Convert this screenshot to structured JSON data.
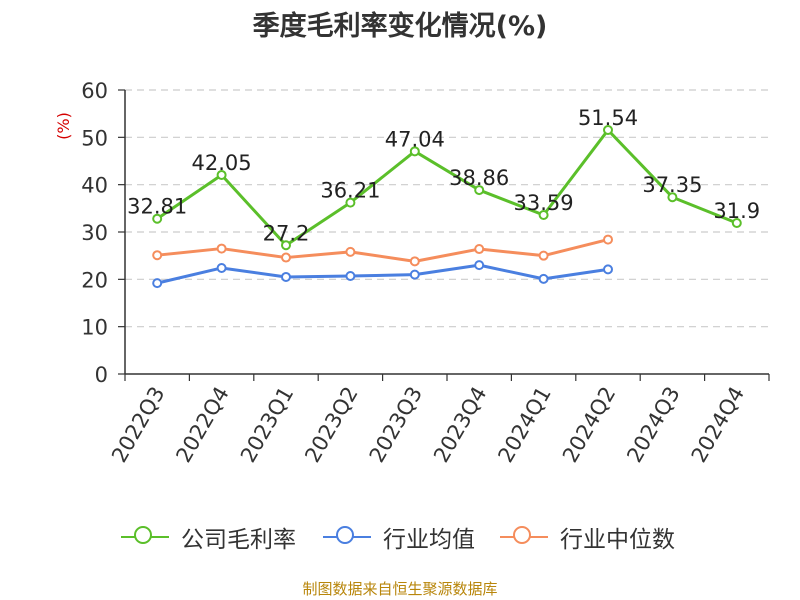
{
  "title": "季度毛利率变化情况(%)",
  "source": "制图数据来自恒生聚源数据库",
  "chart_data": {
    "type": "line",
    "title": "季度毛利率变化情况(%)",
    "ylabel": "(%)",
    "xlabel": "",
    "ylim": [
      0,
      60
    ],
    "yticks": [
      0,
      10,
      20,
      30,
      40,
      50,
      60
    ],
    "grid": true,
    "legend_position": "bottom",
    "categories": [
      "2022Q3",
      "2022Q4",
      "2023Q1",
      "2023Q2",
      "2023Q3",
      "2023Q4",
      "2024Q1",
      "2024Q2",
      "2024Q3",
      "2024Q4"
    ],
    "series": [
      {
        "name": "公司毛利率",
        "color": "#5bbf2a",
        "values": [
          32.81,
          42.05,
          27.2,
          36.21,
          47.04,
          38.86,
          33.59,
          51.54,
          37.35,
          31.9
        ],
        "data_labels": [
          "32.81",
          "42.05",
          "27.2",
          "36.21",
          "47.04",
          "38.86",
          "33.59",
          "51.54",
          "37.35",
          "31.9"
        ]
      },
      {
        "name": "行业均值",
        "color": "#4a7fe0",
        "values": [
          19.2,
          22.4,
          20.5,
          20.7,
          21.0,
          23.0,
          20.1,
          22.1,
          null,
          null
        ]
      },
      {
        "name": "行业中位数",
        "color": "#f58d5c",
        "values": [
          25.1,
          26.5,
          24.6,
          25.8,
          23.8,
          26.4,
          25.0,
          28.4,
          null,
          null
        ]
      }
    ]
  }
}
